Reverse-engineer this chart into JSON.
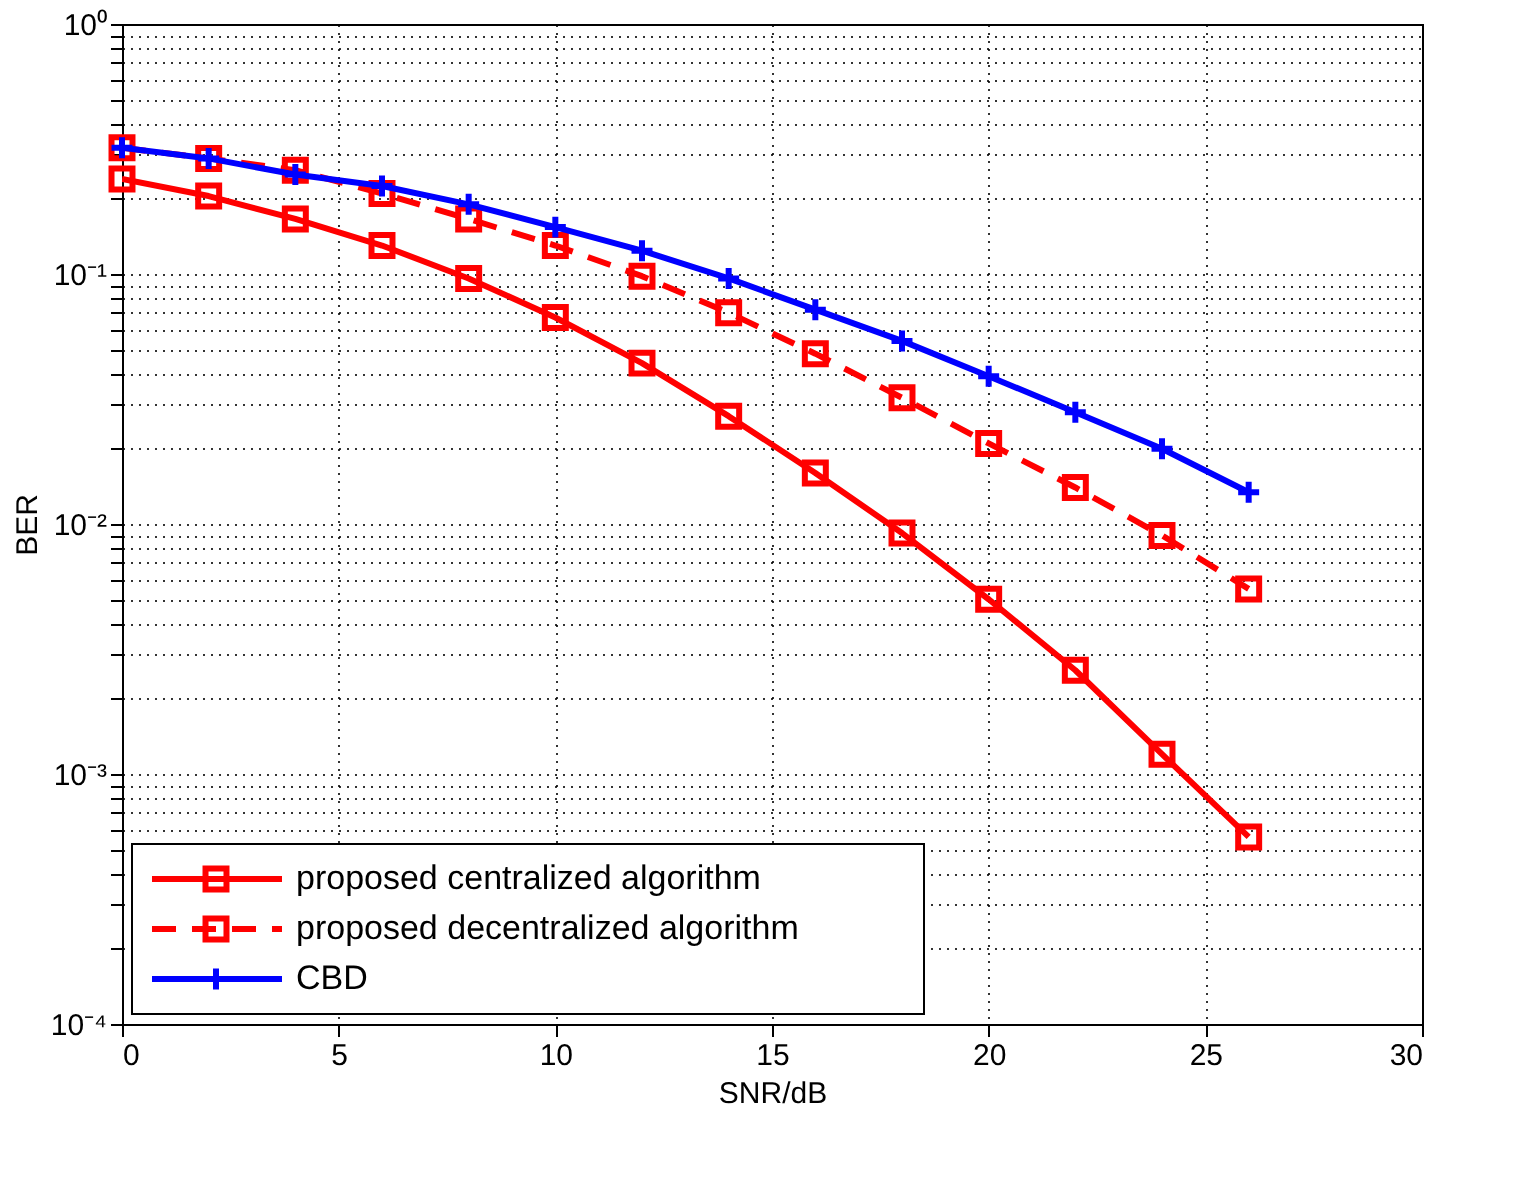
{
  "chart_data": {
    "type": "line",
    "xlabel": "SNR/dB",
    "ylabel": "BER",
    "log": "y",
    "grid": true,
    "legend": "bottom left",
    "x": [
      0,
      2,
      4,
      6,
      8,
      10,
      12,
      14,
      16,
      18,
      20,
      22,
      24,
      26
    ],
    "xlim": [
      0,
      30
    ],
    "xticks": [
      0,
      5,
      10,
      15,
      20,
      25,
      30
    ],
    "ylim": [
      0.0001,
      1
    ],
    "yticks": [
      {
        "value": 0.0001,
        "label": "10⁻⁴"
      },
      {
        "value": 0.0002,
        "label": null
      },
      {
        "value": 0.0003,
        "label": null
      },
      {
        "value": 0.0004,
        "label": null
      },
      {
        "value": 0.0005,
        "label": null
      },
      {
        "value": 0.0006,
        "label": null
      },
      {
        "value": 0.0007,
        "label": null
      },
      {
        "value": 0.0008,
        "label": null
      },
      {
        "value": 0.0009,
        "label": null
      },
      {
        "value": 0.001,
        "label": "10⁻³"
      },
      {
        "value": 0.002,
        "label": null
      },
      {
        "value": 0.003,
        "label": null
      },
      {
        "value": 0.004,
        "label": null
      },
      {
        "value": 0.005,
        "label": null
      },
      {
        "value": 0.006,
        "label": null
      },
      {
        "value": 0.007,
        "label": null
      },
      {
        "value": 0.008,
        "label": null
      },
      {
        "value": 0.009,
        "label": null
      },
      {
        "value": 0.01,
        "label": "10⁻²"
      },
      {
        "value": 0.02,
        "label": null
      },
      {
        "value": 0.03,
        "label": null
      },
      {
        "value": 0.04,
        "label": null
      },
      {
        "value": 0.05,
        "label": null
      },
      {
        "value": 0.06,
        "label": null
      },
      {
        "value": 0.07,
        "label": null
      },
      {
        "value": 0.08,
        "label": null
      },
      {
        "value": 0.09,
        "label": null
      },
      {
        "value": 0.1,
        "label": "10⁻¹"
      },
      {
        "value": 0.2,
        "label": null
      },
      {
        "value": 0.3,
        "label": null
      },
      {
        "value": 0.4,
        "label": null
      },
      {
        "value": 0.5,
        "label": null
      },
      {
        "value": 0.6,
        "label": null
      },
      {
        "value": 0.7,
        "label": null
      },
      {
        "value": 0.8,
        "label": null
      },
      {
        "value": 0.9,
        "label": null
      },
      {
        "value": 1,
        "label": "10⁰"
      }
    ],
    "series": [
      {
        "name": "proposed centralized algorithm",
        "color": "#ff0000",
        "marker": "square",
        "line_style": "solid",
        "values": [
          0.24,
          0.205,
          0.166,
          0.13,
          0.096,
          0.067,
          0.044,
          0.027,
          0.016,
          0.0092,
          0.005,
          0.0026,
          0.0012,
          0.00056
        ]
      },
      {
        "name": "proposed decentralized algorithm",
        "color": "#ff0000",
        "marker": "square",
        "line_style": "dashed",
        "values": [
          0.32,
          0.29,
          0.26,
          0.21,
          0.166,
          0.13,
          0.098,
          0.07,
          0.048,
          0.032,
          0.021,
          0.014,
          0.009,
          0.0055
        ]
      },
      {
        "name": "CBD",
        "color": "#0000ff",
        "marker": "cross",
        "line_style": "solid",
        "values": [
          0.32,
          0.29,
          0.25,
          0.225,
          0.19,
          0.154,
          0.124,
          0.096,
          0.072,
          0.054,
          0.039,
          0.028,
          0.02,
          0.0134
        ]
      }
    ]
  }
}
